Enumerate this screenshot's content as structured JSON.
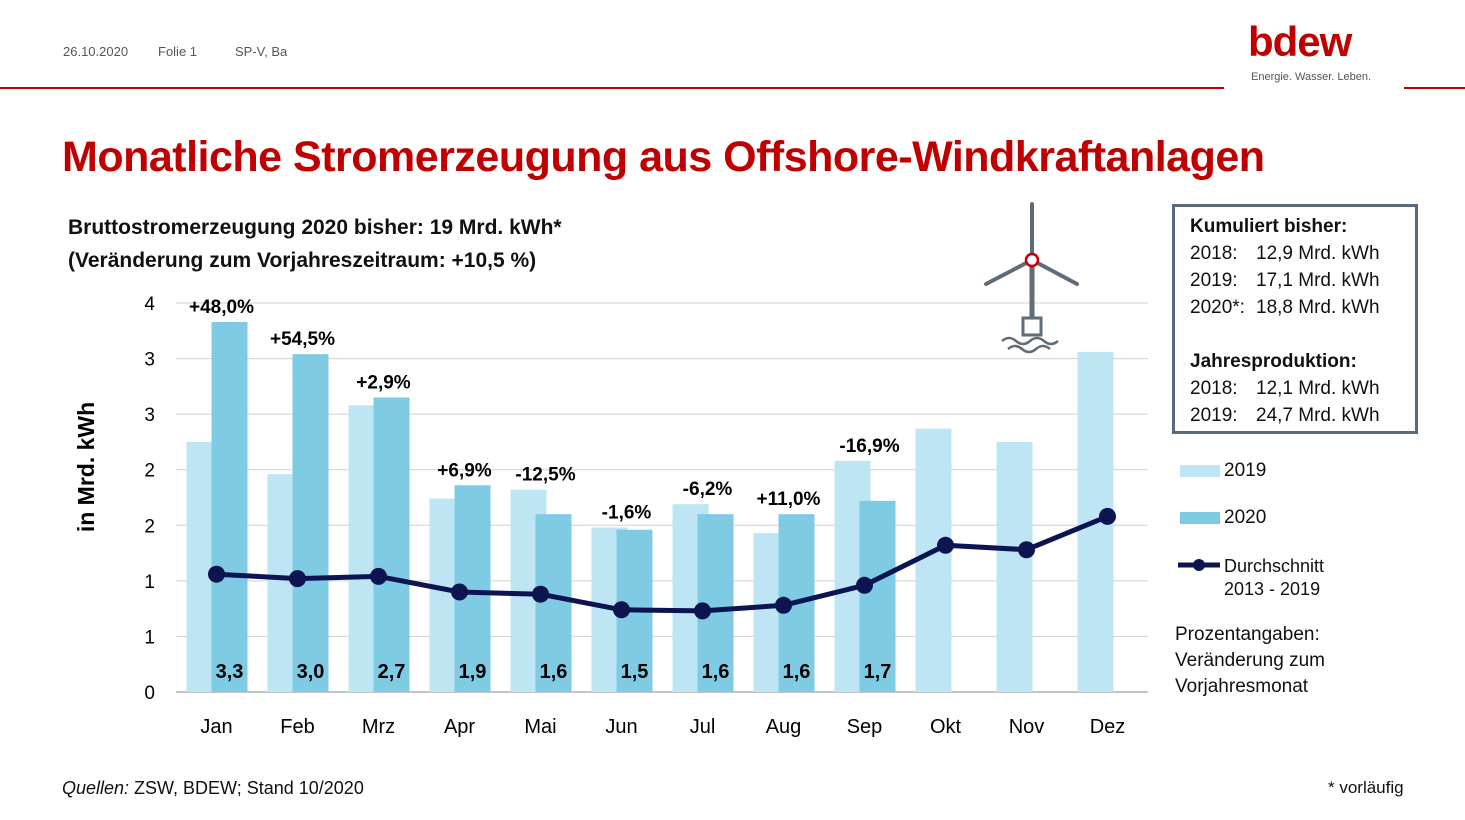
{
  "header": {
    "date": "26.10.2020",
    "slide": "Folie 1",
    "author": "SP-V, Ba"
  },
  "logo": {
    "word": "bdew",
    "tagline": "Energie. Wasser. Leben."
  },
  "title": "Monatliche Stromerzeugung aus Offshore-Windkraftanlagen",
  "subtitle_line1": "Bruttostromerzeugung 2020 bisher: 19 Mrd. kWh*",
  "subtitle_line2": "(Veränderung zum Vorjahreszeitraum: +10,5 %)",
  "infobox": {
    "heading1": "Kumuliert bisher:",
    "cumulative": [
      {
        "key": "2018:",
        "value": "12,9 Mrd. kWh"
      },
      {
        "key": "2019:",
        "value": "17,1 Mrd. kWh"
      },
      {
        "key": "2020*:",
        "value": "18,8 Mrd. kWh"
      }
    ],
    "heading2": "Jahresproduktion:",
    "annual": [
      {
        "key": "2018:",
        "value": "12,1 Mrd. kWh"
      },
      {
        "key": "2019:",
        "value": "24,7 Mrd. kWh"
      }
    ]
  },
  "legend": {
    "series2019": "2019",
    "series2020": "2020",
    "avg_line1": "Durchschnitt",
    "avg_line2": "2013 - 2019"
  },
  "note": {
    "line1": "Prozentangaben:",
    "line2": "Veränderung zum",
    "line3": "Vorjahresmonat"
  },
  "source": {
    "label": "Quellen:",
    "text": " ZSW, BDEW; Stand 10/2020"
  },
  "prelim_note": "* vorläufig",
  "colors": {
    "accent": "#c00000",
    "bar2019": "#bde5f3",
    "bar2020": "#7fcbe3",
    "avg": "#0d1452"
  },
  "chart_data": {
    "type": "bar",
    "ylabel": "in Mrd. kWh",
    "ylim": [
      0,
      3.5
    ],
    "ytick_labels": [
      "0",
      "1",
      "1",
      "2",
      "2",
      "3",
      "3",
      "4"
    ],
    "grid": true,
    "legend_position": "right",
    "categories": [
      "Jan",
      "Feb",
      "Mrz",
      "Apr",
      "Mai",
      "Jun",
      "Jul",
      "Aug",
      "Sep",
      "Okt",
      "Nov",
      "Dez"
    ],
    "series": [
      {
        "name": "2019",
        "values": [
          2.25,
          1.96,
          2.58,
          1.74,
          1.82,
          1.48,
          1.69,
          1.43,
          2.08,
          2.37,
          2.25,
          3.06
        ]
      },
      {
        "name": "2020",
        "values": [
          3.33,
          3.04,
          2.65,
          1.86,
          1.6,
          1.46,
          1.6,
          1.6,
          1.72,
          null,
          null,
          null
        ]
      },
      {
        "name": "Durchschnitt 2013 - 2019",
        "values": [
          1.06,
          1.02,
          1.04,
          0.9,
          0.88,
          0.74,
          0.73,
          0.78,
          0.96,
          1.32,
          1.28,
          1.58
        ]
      }
    ],
    "data_labels_2020": [
      "3,3",
      "3,0",
      "2,7",
      "1,9",
      "1,6",
      "1,5",
      "1,6",
      "1,6",
      "1,7"
    ],
    "change_labels": [
      "+48,0%",
      "+54,5%",
      "+2,9%",
      "+6,9%",
      "-12,5%",
      "-1,6%",
      "-6,2%",
      "+11,0%",
      "-16,9%"
    ]
  }
}
